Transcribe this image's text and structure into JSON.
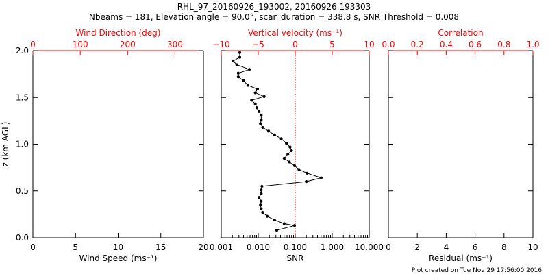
{
  "header": {
    "title": "RHL_97_20160926_193002, 20160926.193303",
    "subtitle": "Nbeams = 181, Elevation angle = 90.0°, scan duration = 338.8 s, SNR Threshold = 0.008"
  },
  "footer": {
    "note": "Plot created on Tue Nov 29 17:56:00 2016"
  },
  "colors": {
    "axis": "#000000",
    "top_axis": "#ff0000",
    "zero_line": "#ff0000",
    "data": "#000000"
  },
  "chart_data": [
    {
      "type": "line",
      "panel": "wind",
      "ylabel": "z (km AGL)",
      "ylim": [
        0,
        2.0
      ],
      "yticks": [
        0.0,
        0.5,
        1.0,
        1.5,
        2.0
      ],
      "ytick_labels": [
        "0.0",
        "0.5",
        "1.0",
        "1.5",
        "2.0"
      ],
      "xlabel": "Wind Speed (ms⁻¹)",
      "xlim": [
        0,
        20
      ],
      "xticks": [
        0,
        5,
        10,
        15,
        20
      ],
      "xtick_labels": [
        "0",
        "5",
        "10",
        "15",
        "20"
      ],
      "top_label": "Wind Direction (deg)",
      "top_lim": [
        0,
        360
      ],
      "top_ticks": [
        0,
        100,
        200,
        300
      ],
      "top_tick_labels": [
        "0",
        "100",
        "200",
        "300"
      ],
      "series": []
    },
    {
      "type": "line",
      "panel": "vertical-velocity",
      "ylim": [
        0,
        2.0
      ],
      "xlabel": "SNR",
      "xscale": "log",
      "xlim": [
        0.001,
        10
      ],
      "xticks": [
        0.001,
        0.01,
        0.1,
        1,
        10
      ],
      "xtick_labels": [
        "0.001",
        "0.010",
        "0.100",
        "1.000",
        "10.000"
      ],
      "top_label": "Vertical velocity (ms⁻¹)",
      "top_lim": [
        -10,
        10
      ],
      "top_ticks": [
        -10,
        -5,
        0,
        5,
        10
      ],
      "top_tick_labels": [
        "−10",
        "−5",
        "0",
        "5",
        "10"
      ],
      "zero_line": 0,
      "series": [
        {
          "axis": "top",
          "marker": "circle",
          "points": [
            [
              -2.5,
              0.08
            ],
            [
              -0.1,
              0.13
            ],
            [
              -1.5,
              0.15
            ],
            [
              -2.8,
              0.19
            ],
            [
              -3.8,
              0.23
            ],
            [
              -4.4,
              0.27
            ],
            [
              -4.6,
              0.31
            ],
            [
              -4.7,
              0.35
            ],
            [
              -4.6,
              0.39
            ],
            [
              -4.9,
              0.43
            ],
            [
              -4.6,
              0.47
            ],
            [
              -4.6,
              0.51
            ],
            [
              -4.5,
              0.55
            ],
            [
              1.5,
              0.6
            ],
            [
              3.5,
              0.64
            ],
            [
              1.6,
              0.69
            ],
            [
              0.5,
              0.73
            ],
            [
              -0.1,
              0.77
            ],
            [
              -0.8,
              0.81
            ],
            [
              -1.5,
              0.85
            ],
            [
              -1.0,
              0.89
            ],
            [
              -0.5,
              0.93
            ],
            [
              -0.7,
              0.97
            ],
            [
              -1.2,
              1.01
            ],
            [
              -1.9,
              1.06
            ],
            [
              -2.8,
              1.1
            ],
            [
              -3.6,
              1.14
            ],
            [
              -4.4,
              1.18
            ],
            [
              -4.7,
              1.22
            ],
            [
              -4.6,
              1.26
            ],
            [
              -4.6,
              1.31
            ],
            [
              -4.9,
              1.35
            ],
            [
              -5.2,
              1.39
            ],
            [
              -5.4,
              1.43
            ],
            [
              -5.9,
              1.47
            ],
            [
              -4.2,
              1.51
            ],
            [
              -5.4,
              1.55
            ],
            [
              -5.1,
              1.59
            ],
            [
              -6.4,
              1.63
            ],
            [
              -7.0,
              1.68
            ],
            [
              -7.7,
              1.72
            ],
            [
              -7.7,
              1.76
            ],
            [
              -6.2,
              1.8
            ],
            [
              -7.9,
              1.85
            ],
            [
              -8.4,
              1.89
            ],
            [
              -7.5,
              1.93
            ],
            [
              -7.5,
              1.98
            ]
          ]
        }
      ]
    },
    {
      "type": "line",
      "panel": "correlation",
      "ylim": [
        0,
        2.0
      ],
      "xlabel": "Residual (ms⁻¹)",
      "xlim": [
        0,
        10
      ],
      "xticks": [
        0,
        2,
        4,
        6,
        8,
        10
      ],
      "xtick_labels": [
        "0",
        "2",
        "4",
        "6",
        "8",
        "10"
      ],
      "top_label": "Correlation",
      "top_lim": [
        0,
        1
      ],
      "top_ticks": [
        0,
        0.2,
        0.4,
        0.6,
        0.8,
        1.0
      ],
      "top_tick_labels": [
        "0.0",
        "0.2",
        "0.4",
        "0.6",
        "0.8",
        "1.0"
      ],
      "series": []
    }
  ]
}
